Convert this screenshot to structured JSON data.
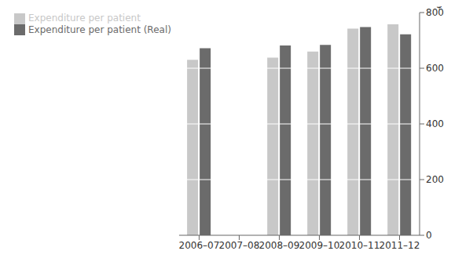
{
  "chart_data": {
    "type": "bar",
    "categories": [
      "2006–07",
      "2007–08",
      "2008–09",
      "2009–10",
      "2010–11",
      "2011–12"
    ],
    "series": [
      {
        "name": "Expenditure per patient",
        "color": "#c8c8c8",
        "values": [
          630,
          null,
          638,
          660,
          742,
          758
        ]
      },
      {
        "name": "Expenditure per patient (Real)",
        "color": "#6b6b6b",
        "values": [
          672,
          null,
          682,
          684,
          748,
          722
        ]
      }
    ],
    "ylabel": "$",
    "ylim": [
      0,
      800
    ],
    "yticks": [
      0,
      200,
      400,
      600,
      800
    ],
    "legend": "upper left"
  }
}
